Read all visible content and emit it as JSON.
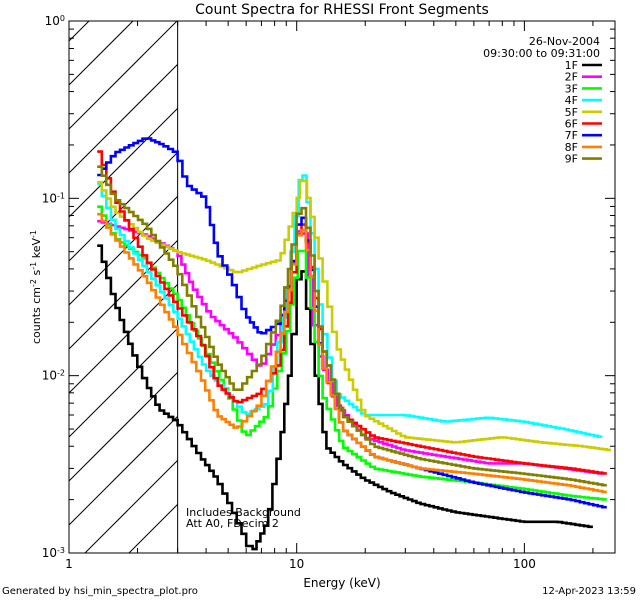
{
  "chart_data": {
    "type": "line",
    "title": "Count Spectra for RHESSI Front Segments",
    "xlabel": "Energy (keV)",
    "ylabel_parts": [
      "counts cm",
      "-2",
      " s",
      "-1",
      " keV",
      "-1"
    ],
    "xscale": "log",
    "yscale": "log",
    "xlim": [
      1,
      250
    ],
    "ylim": [
      0.001,
      1
    ],
    "x_ticks": [
      {
        "value": 1,
        "label": "1"
      },
      {
        "value": 10,
        "label": "10"
      },
      {
        "value": 100,
        "label": "100"
      }
    ],
    "y_ticks": [
      {
        "value": 0.001,
        "base": "10",
        "exp": "-3"
      },
      {
        "value": 0.01,
        "base": "10",
        "exp": "-2"
      },
      {
        "value": 0.1,
        "base": "10",
        "exp": "-1"
      },
      {
        "value": 1,
        "base": "10",
        "exp": "0"
      }
    ],
    "shaded_region": {
      "from": 1,
      "to": 3,
      "pattern": "diagonal-hatch"
    },
    "date": "26-Nov-2004",
    "time_range": "09:30:00 to 09:31:00",
    "annotations": [
      "Includes Background",
      "Att A0, FDecim 2"
    ],
    "series": [
      {
        "name": "1F",
        "color": "#000000",
        "points": [
          [
            1.33,
            0.06
          ],
          [
            1.6,
            0.026
          ],
          [
            1.9,
            0.014
          ],
          [
            2.2,
            0.009
          ],
          [
            2.5,
            0.0065
          ],
          [
            3,
            0.0055
          ],
          [
            3.8,
            0.0035
          ],
          [
            4.5,
            0.0026
          ],
          [
            5.2,
            0.0018
          ],
          [
            6,
            0.0012
          ],
          [
            6.4,
            0.001
          ],
          [
            7.5,
            0.0015
          ],
          [
            8.5,
            0.004
          ],
          [
            9.5,
            0.012
          ],
          [
            10.5,
            0.05
          ],
          [
            11,
            0.03
          ],
          [
            12,
            0.012
          ],
          [
            13.5,
            0.004
          ],
          [
            16,
            0.0032
          ],
          [
            20,
            0.0026
          ],
          [
            26,
            0.0022
          ],
          [
            35,
            0.0019
          ],
          [
            50,
            0.0017
          ],
          [
            70,
            0.0016
          ],
          [
            100,
            0.0015
          ],
          [
            140,
            0.0015
          ],
          [
            200,
            0.0014
          ]
        ]
      },
      {
        "name": "2F",
        "color": "#ff00ff",
        "points": [
          [
            1.33,
            0.075
          ],
          [
            1.6,
            0.07
          ],
          [
            2.2,
            0.062
          ],
          [
            3,
            0.05
          ],
          [
            3.5,
            0.032
          ],
          [
            4.2,
            0.022
          ],
          [
            5.5,
            0.016
          ],
          [
            7,
            0.011
          ],
          [
            8.5,
            0.018
          ],
          [
            9.5,
            0.035
          ],
          [
            10.5,
            0.08
          ],
          [
            11.2,
            0.05
          ],
          [
            12.5,
            0.014
          ],
          [
            15,
            0.007
          ],
          [
            20,
            0.0045
          ],
          [
            30,
            0.0038
          ],
          [
            45,
            0.0035
          ],
          [
            70,
            0.0032
          ],
          [
            100,
            0.0032
          ],
          [
            150,
            0.003
          ],
          [
            220,
            0.0028
          ]
        ]
      },
      {
        "name": "3F",
        "color": "#00ff00",
        "points": [
          [
            1.33,
            0.095
          ],
          [
            1.6,
            0.06
          ],
          [
            2.2,
            0.045
          ],
          [
            3,
            0.028
          ],
          [
            4,
            0.014
          ],
          [
            5,
            0.008
          ],
          [
            6,
            0.0045
          ],
          [
            7.5,
            0.006
          ],
          [
            9,
            0.015
          ],
          [
            10.5,
            0.06
          ],
          [
            11.5,
            0.03
          ],
          [
            13,
            0.008
          ],
          [
            16,
            0.004
          ],
          [
            22,
            0.003
          ],
          [
            35,
            0.0027
          ],
          [
            60,
            0.0025
          ],
          [
            100,
            0.0023
          ],
          [
            160,
            0.0021
          ],
          [
            230,
            0.002
          ]
        ]
      },
      {
        "name": "4F",
        "color": "#00ffff",
        "points": [
          [
            1.33,
            0.13
          ],
          [
            1.6,
            0.07
          ],
          [
            2.2,
            0.04
          ],
          [
            3,
            0.022
          ],
          [
            4,
            0.011
          ],
          [
            5,
            0.008
          ],
          [
            6,
            0.006
          ],
          [
            7.5,
            0.007
          ],
          [
            9,
            0.025
          ],
          [
            10.2,
            0.1
          ],
          [
            10.6,
            0.16
          ],
          [
            11.5,
            0.08
          ],
          [
            13,
            0.02
          ],
          [
            15,
            0.008
          ],
          [
            20,
            0.006
          ],
          [
            30,
            0.006
          ],
          [
            45,
            0.0055
          ],
          [
            70,
            0.0058
          ],
          [
            100,
            0.0055
          ],
          [
            150,
            0.005
          ],
          [
            220,
            0.0045
          ]
        ]
      },
      {
        "name": "5F",
        "color": "#cccc00",
        "points": [
          [
            1.33,
            0.13
          ],
          [
            1.6,
            0.085
          ],
          [
            2.2,
            0.06
          ],
          [
            3,
            0.05
          ],
          [
            4,
            0.045
          ],
          [
            5.5,
            0.038
          ],
          [
            7,
            0.042
          ],
          [
            8.5,
            0.045
          ],
          [
            10,
            0.09
          ],
          [
            10.7,
            0.14
          ],
          [
            11.5,
            0.09
          ],
          [
            13,
            0.04
          ],
          [
            15,
            0.015
          ],
          [
            20,
            0.006
          ],
          [
            30,
            0.0045
          ],
          [
            50,
            0.0042
          ],
          [
            80,
            0.0045
          ],
          [
            120,
            0.0042
          ],
          [
            180,
            0.004
          ],
          [
            240,
            0.0038
          ]
        ]
      },
      {
        "name": "6F",
        "color": "#ff0000",
        "points": [
          [
            1.33,
            0.2
          ],
          [
            1.6,
            0.1
          ],
          [
            2.2,
            0.045
          ],
          [
            3,
            0.025
          ],
          [
            3.8,
            0.016
          ],
          [
            4.5,
            0.009
          ],
          [
            5.5,
            0.007
          ],
          [
            7,
            0.008
          ],
          [
            8.5,
            0.012
          ],
          [
            9.5,
            0.03
          ],
          [
            10.5,
            0.08
          ],
          [
            11.5,
            0.05
          ],
          [
            13,
            0.015
          ],
          [
            16,
            0.006
          ],
          [
            22,
            0.0045
          ],
          [
            35,
            0.004
          ],
          [
            60,
            0.0035
          ],
          [
            100,
            0.0032
          ],
          [
            160,
            0.003
          ],
          [
            230,
            0.0028
          ]
        ]
      },
      {
        "name": "7F",
        "color": "#0000ff",
        "points": [
          [
            1.33,
            0.13
          ],
          [
            1.6,
            0.18
          ],
          [
            2.2,
            0.22
          ],
          [
            2.6,
            0.2
          ],
          [
            3,
            0.18
          ],
          [
            3.3,
            0.12
          ],
          [
            4,
            0.1
          ],
          [
            4.5,
            0.05
          ],
          [
            5.2,
            0.035
          ],
          [
            6,
            0.022
          ],
          [
            7,
            0.017
          ],
          [
            8.5,
            0.02
          ],
          [
            9.5,
            0.035
          ],
          [
            10.5,
            0.09
          ],
          [
            11.5,
            0.05
          ],
          [
            13,
            0.012
          ],
          [
            16,
            0.005
          ],
          [
            22,
            0.0035
          ],
          [
            35,
            0.003
          ],
          [
            60,
            0.0025
          ],
          [
            100,
            0.0022
          ],
          [
            160,
            0.002
          ],
          [
            230,
            0.0018
          ]
        ]
      },
      {
        "name": "8F",
        "color": "#ff8000",
        "points": [
          [
            1.33,
            0.085
          ],
          [
            1.6,
            0.06
          ],
          [
            2.2,
            0.035
          ],
          [
            3,
            0.018
          ],
          [
            3.8,
            0.01
          ],
          [
            4.5,
            0.006
          ],
          [
            5.5,
            0.005
          ],
          [
            7,
            0.007
          ],
          [
            8.5,
            0.015
          ],
          [
            9.5,
            0.035
          ],
          [
            10.5,
            0.075
          ],
          [
            11.5,
            0.045
          ],
          [
            13,
            0.012
          ],
          [
            16,
            0.005
          ],
          [
            22,
            0.0035
          ],
          [
            35,
            0.003
          ],
          [
            60,
            0.0028
          ],
          [
            100,
            0.0026
          ],
          [
            160,
            0.0024
          ],
          [
            230,
            0.0022
          ]
        ]
      },
      {
        "name": "9F",
        "color": "#808000",
        "points": [
          [
            1.33,
            0.16
          ],
          [
            1.6,
            0.1
          ],
          [
            2.2,
            0.07
          ],
          [
            3,
            0.04
          ],
          [
            3.8,
            0.02
          ],
          [
            4.5,
            0.012
          ],
          [
            5.5,
            0.008
          ],
          [
            7,
            0.012
          ],
          [
            8.5,
            0.022
          ],
          [
            9.5,
            0.045
          ],
          [
            10.5,
            0.1
          ],
          [
            11.5,
            0.06
          ],
          [
            13,
            0.015
          ],
          [
            16,
            0.006
          ],
          [
            22,
            0.004
          ],
          [
            35,
            0.0034
          ],
          [
            60,
            0.003
          ],
          [
            100,
            0.0028
          ],
          [
            160,
            0.0026
          ],
          [
            230,
            0.0024
          ]
        ]
      }
    ]
  },
  "footer": {
    "generated_by": "Generated by hsi_min_spectra_plot.pro",
    "timestamp": "12-Apr-2023 13:59"
  }
}
